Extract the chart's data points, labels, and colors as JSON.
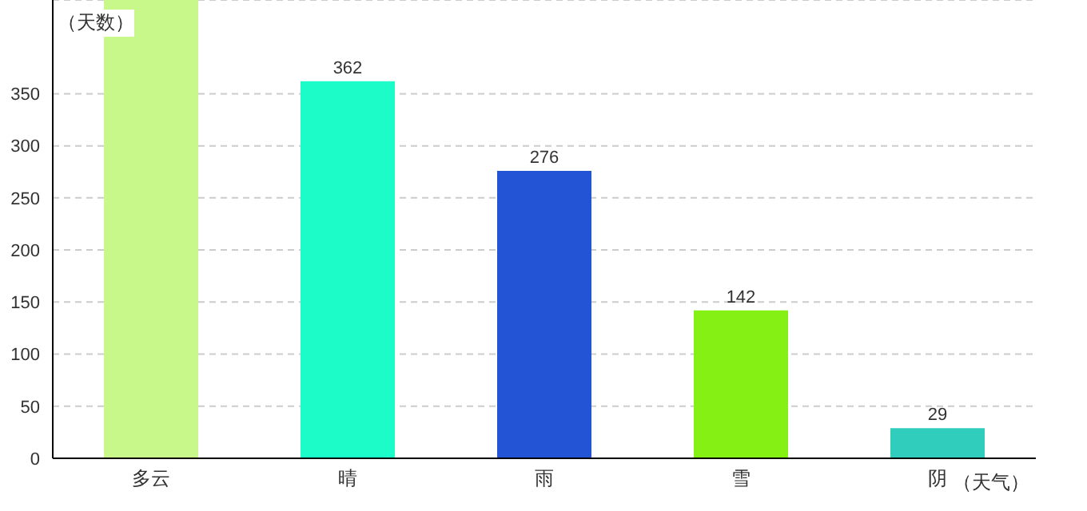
{
  "chart_data": {
    "type": "bar",
    "xlabel": "（天气）",
    "ylabel": "（天数）",
    "categories": [
      "多云",
      "晴",
      "雨",
      "雪",
      "阴"
    ],
    "values": [
      440,
      362,
      276,
      142,
      29
    ],
    "colors": [
      "#c8f78a",
      "#1cfcc8",
      "#2454d6",
      "#84f014",
      "#30ccbc"
    ],
    "value_labels": [
      null,
      "362",
      "276",
      "142",
      "29"
    ],
    "ylim": [
      0,
      440
    ],
    "yticks": [
      0,
      50,
      100,
      150,
      200,
      250,
      300,
      350
    ],
    "grid": "y"
  }
}
